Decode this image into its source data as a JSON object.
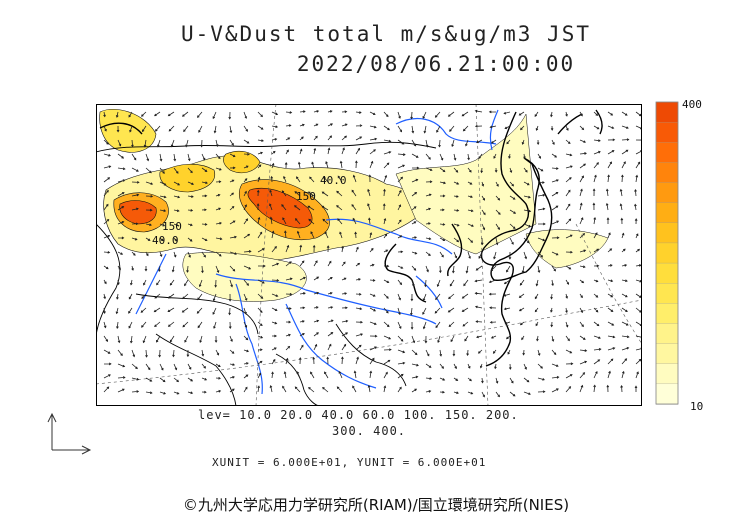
{
  "title_line1": "U-V&Dust total m/s&ug/m3 JST",
  "title_line2": "2022/08/06.21:00:00",
  "legend": {
    "max_label": "400",
    "min_label": "10",
    "colors": [
      "#ffffd8",
      "#fffcc0",
      "#fff7a0",
      "#fff38a",
      "#ffee6a",
      "#ffe650",
      "#ffde3c",
      "#ffd22c",
      "#ffc21e",
      "#ffae14",
      "#ff9a10",
      "#ff840c",
      "#ff6e08",
      "#f85a06",
      "#ee4a04"
    ]
  },
  "contour_levels_line1": "lev= 10.0 20.0 40.0 60.0 100. 150. 200.",
  "contour_levels_line2": "300. 400.",
  "unit_line": "XUNIT = 6.000E+01, YUNIT = 6.000E+01",
  "credit": "©九州大学応用力学研究所(RIAM)/国立環境研究所(NIES)",
  "map_labels": {
    "label_150_a": "150",
    "label_40_a": "40.0",
    "label_150_b": "150",
    "label_40_b": "40.0"
  },
  "colors": {
    "coast": "#000000",
    "river": "#1f5fff",
    "border": "#000000",
    "vector": "#222222"
  }
}
